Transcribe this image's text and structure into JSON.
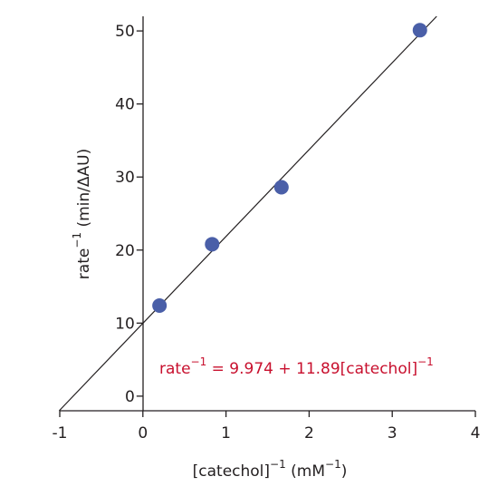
{
  "chart_data": {
    "type": "scatter",
    "title": "",
    "xlabel": {
      "main": "[catechol]",
      "sup": "−1",
      "unit_open": " (mM",
      "unit_sup": "−1",
      "unit_close": ")"
    },
    "ylabel": {
      "main": "rate",
      "sup": "−1",
      "unit": " (min/ΔAU)"
    },
    "xlim": [
      -1,
      4
    ],
    "ylim": [
      -2,
      52
    ],
    "x_ticks": [
      -1,
      0,
      1,
      2,
      3,
      4
    ],
    "x_tick_labels": [
      "-1",
      "0",
      "1",
      "2",
      "3",
      "4"
    ],
    "y_ticks": [
      0,
      10,
      20,
      30,
      40,
      50
    ],
    "y_tick_labels": [
      "0",
      "10",
      "20",
      "30",
      "40",
      "50"
    ],
    "grid": false,
    "series": [
      {
        "x": [
          0.2,
          0.833,
          1.667,
          3.333
        ],
        "y": [
          12.4,
          20.8,
          28.6,
          50.1
        ]
      }
    ],
    "fit": {
      "intercept": 9.974,
      "slope": 11.89
    },
    "annotation": {
      "lhs": "rate",
      "lhs_sup": "−1",
      "rhs": " = 9.974 + 11.89[catechol]",
      "rhs_sup": "−1"
    },
    "colors": {
      "points": "#4a5fa8",
      "line": "#231f20",
      "annotation": "#c8102e",
      "axis": "#231f20"
    }
  }
}
